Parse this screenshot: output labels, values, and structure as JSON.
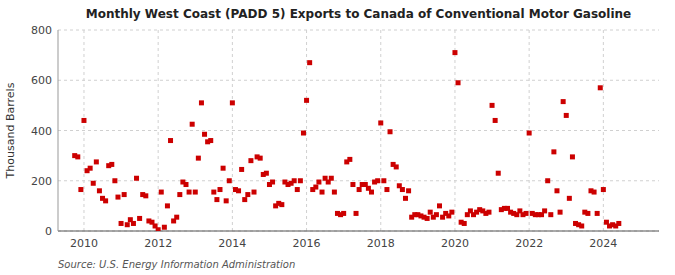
{
  "chart_data": {
    "type": "scatter",
    "title": "Monthly West Coast (PADD 5) Exports to Canada of Conventional Motor Gasoline",
    "ylabel": "Thousand Barrels",
    "source": "Source: U.S. Energy Information Administration",
    "color": "#cc0000",
    "marker": "square",
    "grid": true,
    "xlim": [
      2009.3,
      2025.5
    ],
    "xticks": [
      2010,
      2012,
      2014,
      2016,
      2018,
      2020,
      2022,
      2024
    ],
    "ylim": [
      0,
      800
    ],
    "yticks": [
      0,
      200,
      400,
      600,
      800
    ],
    "x": [
      2009.75,
      2009.8333333,
      2009.9166667,
      2010,
      2010.0833333,
      2010.1666667,
      2010.25,
      2010.3333333,
      2010.4166667,
      2010.5,
      2010.5833333,
      2010.6666667,
      2010.75,
      2010.8333333,
      2010.9166667,
      2011,
      2011.0833333,
      2011.1666667,
      2011.25,
      2011.3333333,
      2011.4166667,
      2011.5,
      2011.5833333,
      2011.6666667,
      2011.75,
      2011.8333333,
      2011.9166667,
      2012,
      2012.0833333,
      2012.1666667,
      2012.25,
      2012.3333333,
      2012.4166667,
      2012.5,
      2012.5833333,
      2012.6666667,
      2012.75,
      2012.8333333,
      2012.9166667,
      2013,
      2013.0833333,
      2013.1666667,
      2013.25,
      2013.3333333,
      2013.4166667,
      2013.5,
      2013.5833333,
      2013.6666667,
      2013.75,
      2013.8333333,
      2013.9166667,
      2014,
      2014.0833333,
      2014.1666667,
      2014.25,
      2014.3333333,
      2014.4166667,
      2014.5,
      2014.5833333,
      2014.6666667,
      2014.75,
      2014.8333333,
      2014.9166667,
      2015,
      2015.0833333,
      2015.1666667,
      2015.25,
      2015.3333333,
      2015.4166667,
      2015.5,
      2015.5833333,
      2015.6666667,
      2015.75,
      2015.8333333,
      2015.9166667,
      2016,
      2016.0833333,
      2016.1666667,
      2016.25,
      2016.3333333,
      2016.4166667,
      2016.5,
      2016.5833333,
      2016.6666667,
      2016.75,
      2016.8333333,
      2016.9166667,
      2017,
      2017.0833333,
      2017.1666667,
      2017.25,
      2017.3333333,
      2017.4166667,
      2017.5,
      2017.5833333,
      2017.6666667,
      2017.75,
      2017.8333333,
      2017.9166667,
      2018,
      2018.0833333,
      2018.1666667,
      2018.25,
      2018.3333333,
      2018.4166667,
      2018.5,
      2018.5833333,
      2018.6666667,
      2018.75,
      2018.8333333,
      2018.9166667,
      2019,
      2019.0833333,
      2019.1666667,
      2019.25,
      2019.3333333,
      2019.4166667,
      2019.5,
      2019.5833333,
      2019.6666667,
      2019.75,
      2019.8333333,
      2019.9166667,
      2020,
      2020.0833333,
      2020.1666667,
      2020.25,
      2020.3333333,
      2020.4166667,
      2020.5,
      2020.5833333,
      2020.6666667,
      2020.75,
      2020.8333333,
      2020.9166667,
      2021,
      2021.0833333,
      2021.1666667,
      2021.25,
      2021.3333333,
      2021.4166667,
      2021.5,
      2021.5833333,
      2021.6666667,
      2021.75,
      2021.8333333,
      2021.9166667,
      2022,
      2022.0833333,
      2022.1666667,
      2022.25,
      2022.3333333,
      2022.4166667,
      2022.5,
      2022.5833333,
      2022.6666667,
      2022.75,
      2022.8333333,
      2022.9166667,
      2023,
      2023.0833333,
      2023.1666667,
      2023.25,
      2023.3333333,
      2023.4166667,
      2023.5,
      2023.5833333,
      2023.6666667,
      2023.75,
      2023.8333333,
      2023.9166667,
      2024,
      2024.0833333,
      2024.1666667,
      2024.25,
      2024.3333333,
      2024.4166667
    ],
    "values": [
      300,
      295,
      165,
      440,
      240,
      250,
      190,
      275,
      160,
      130,
      120,
      260,
      265,
      200,
      135,
      30,
      145,
      25,
      45,
      30,
      210,
      50,
      145,
      140,
      40,
      35,
      20,
      5,
      155,
      15,
      100,
      360,
      40,
      55,
      145,
      195,
      185,
      155,
      425,
      155,
      290,
      510,
      385,
      355,
      360,
      155,
      125,
      165,
      250,
      120,
      200,
      510,
      165,
      160,
      245,
      125,
      145,
      280,
      155,
      295,
      290,
      225,
      230,
      185,
      195,
      100,
      110,
      105,
      195,
      185,
      190,
      200,
      165,
      200,
      390,
      520,
      670,
      165,
      175,
      195,
      155,
      210,
      195,
      210,
      155,
      70,
      65,
      70,
      275,
      285,
      185,
      70,
      165,
      185,
      185,
      170,
      155,
      195,
      200,
      430,
      200,
      165,
      395,
      265,
      255,
      180,
      165,
      130,
      160,
      55,
      65,
      65,
      60,
      55,
      50,
      75,
      55,
      65,
      100,
      55,
      70,
      60,
      75,
      710,
      590,
      35,
      30,
      65,
      80,
      65,
      75,
      85,
      80,
      70,
      75,
      500,
      440,
      230,
      85,
      90,
      90,
      75,
      70,
      65,
      80,
      65,
      70,
      390,
      70,
      65,
      65,
      65,
      80,
      200,
      65,
      315,
      160,
      75,
      515,
      460,
      130,
      295,
      30,
      25,
      20,
      75,
      70,
      160,
      155,
      70,
      570,
      165,
      35,
      20,
      25,
      20,
      30
    ]
  }
}
